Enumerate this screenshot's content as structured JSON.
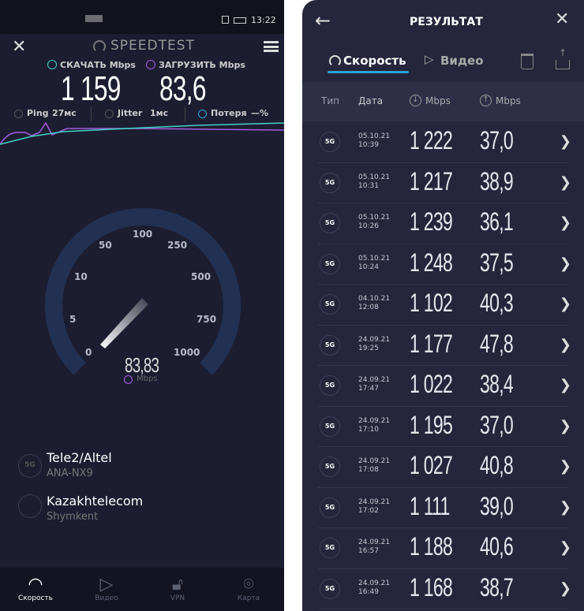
{
  "left": {
    "status": {
      "time": "13:22"
    },
    "app_title": "SPEEDTEST",
    "download_label": "СКАЧАТЬ Mbps",
    "upload_label": "ЗАГРУЗИТЬ Mbps",
    "download_value": "1 159",
    "upload_value": "83,6",
    "ping_label": "Ping",
    "ping_value": "27мс",
    "jitter_label": "Jitter",
    "jitter_value": "1мс",
    "loss_label": "Потеря",
    "loss_value": "—%",
    "gauge": {
      "ticks": [
        "0",
        "5",
        "10",
        "50",
        "100",
        "250",
        "500",
        "750",
        "1000"
      ],
      "value": "83,83",
      "unit": "Mbps"
    },
    "provider": {
      "name": "Tele2/Altel",
      "device": "ANA-NX9",
      "badge": "5G"
    },
    "server": {
      "name": "Kazakhtelecom",
      "city": "Shymkent"
    },
    "nav": [
      {
        "label": "Скорость",
        "icon": "gauge-icon"
      },
      {
        "label": "Видео",
        "icon": "play-icon"
      },
      {
        "label": "VPN",
        "icon": "lock-icon"
      },
      {
        "label": "Карта",
        "icon": "map-pin-icon"
      }
    ],
    "colors": {
      "download": "#3fd3c4",
      "upload": "#a35ce0",
      "gauge_track": "#223152"
    }
  },
  "right": {
    "title": "РЕЗУЛЬТАТ",
    "tabs": [
      {
        "label": "Скорость",
        "active": true
      },
      {
        "label": "Видео",
        "active": false
      }
    ],
    "columns": [
      "Тип",
      "Дата",
      "Mbps",
      "Mbps"
    ],
    "rows": [
      {
        "type": "5G",
        "date": "05.10.21",
        "time": "10:39",
        "down": "1 222",
        "up": "37,0"
      },
      {
        "type": "5G",
        "date": "05.10.21",
        "time": "10:31",
        "down": "1 217",
        "up": "38,9"
      },
      {
        "type": "5G",
        "date": "05.10.21",
        "time": "10:26",
        "down": "1 239",
        "up": "36,1"
      },
      {
        "type": "5G",
        "date": "05.10.21",
        "time": "10:24",
        "down": "1 248",
        "up": "37,5"
      },
      {
        "type": "5G",
        "date": "04.10.21",
        "time": "12:08",
        "down": "1 102",
        "up": "40,3"
      },
      {
        "type": "5G",
        "date": "24.09.21",
        "time": "19:25",
        "down": "1 177",
        "up": "47,8"
      },
      {
        "type": "5G",
        "date": "24.09.21",
        "time": "17:47",
        "down": "1 022",
        "up": "38,4"
      },
      {
        "type": "5G",
        "date": "24.09.21",
        "time": "17:10",
        "down": "1 195",
        "up": "37,0"
      },
      {
        "type": "5G",
        "date": "24.09.21",
        "time": "17:08",
        "down": "1 027",
        "up": "40,8"
      },
      {
        "type": "5G",
        "date": "24.09.21",
        "time": "17:02",
        "down": "1 111",
        "up": "39,0"
      },
      {
        "type": "5G",
        "date": "24.09.21",
        "time": "16:57",
        "down": "1 188",
        "up": "40,6"
      },
      {
        "type": "5G",
        "date": "24.09.21",
        "time": "16:49",
        "down": "1 168",
        "up": "38,7"
      }
    ]
  }
}
